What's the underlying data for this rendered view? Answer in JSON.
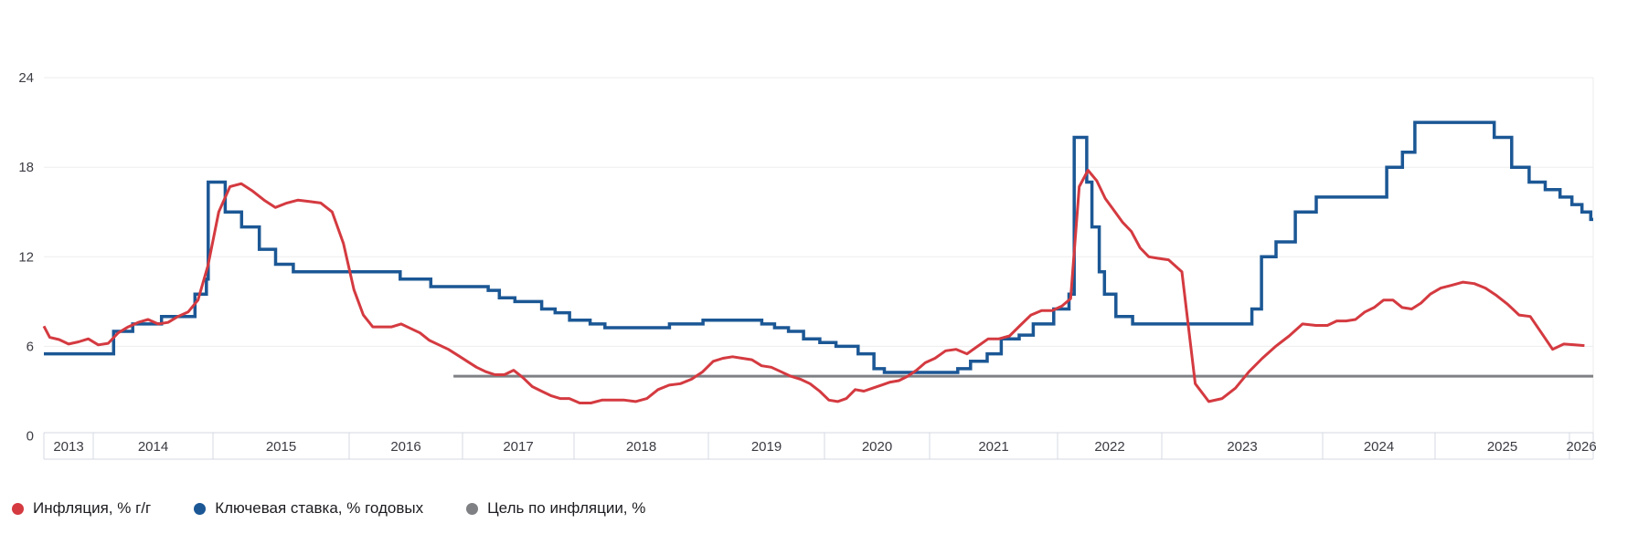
{
  "legend": {
    "items": [
      {
        "label": "Инфляция, % г/г",
        "color": "#d43a40"
      },
      {
        "label": "Ключевая ставка, % годовых",
        "color": "#1b5795"
      },
      {
        "label": "Цель по инфляции, %",
        "color": "#7e8084"
      }
    ]
  },
  "chart_data": {
    "type": "line",
    "title": "",
    "grid": true,
    "legend_position": "bottom-left",
    "y_axis": {
      "ticks": [
        0,
        6,
        12,
        18,
        24
      ],
      "range": [
        0,
        24
      ]
    },
    "x_axis": {
      "years": [
        2013,
        2014,
        2015,
        2016,
        2017,
        2018,
        2019,
        2020,
        2021,
        2022,
        2023,
        2024,
        2025,
        2026
      ],
      "range": [
        2013.58,
        2026.19
      ]
    },
    "series": [
      {
        "name": "Инфляция, % г/г",
        "type": "line",
        "color": "#d43a40",
        "points": [
          [
            2013.58,
            7.35
          ],
          [
            2013.63,
            6.6
          ],
          [
            2013.71,
            6.45
          ],
          [
            2013.79,
            6.15
          ],
          [
            2013.875,
            6.3
          ],
          [
            2013.958,
            6.5
          ],
          [
            2014.042,
            6.1
          ],
          [
            2014.125,
            6.2
          ],
          [
            2014.208,
            6.9
          ],
          [
            2014.292,
            7.3
          ],
          [
            2014.375,
            7.6
          ],
          [
            2014.458,
            7.8
          ],
          [
            2014.542,
            7.5
          ],
          [
            2014.625,
            7.6
          ],
          [
            2014.708,
            8.0
          ],
          [
            2014.792,
            8.3
          ],
          [
            2014.875,
            9.1
          ],
          [
            2014.958,
            11.4
          ],
          [
            2015.042,
            15.0
          ],
          [
            2015.125,
            16.7
          ],
          [
            2015.208,
            16.9
          ],
          [
            2015.292,
            16.4
          ],
          [
            2015.375,
            15.8
          ],
          [
            2015.458,
            15.3
          ],
          [
            2015.542,
            15.6
          ],
          [
            2015.625,
            15.8
          ],
          [
            2015.708,
            15.7
          ],
          [
            2015.792,
            15.6
          ],
          [
            2015.875,
            15.0
          ],
          [
            2015.958,
            12.9
          ],
          [
            2016.042,
            9.8
          ],
          [
            2016.125,
            8.1
          ],
          [
            2016.208,
            7.3
          ],
          [
            2016.292,
            7.3
          ],
          [
            2016.375,
            7.3
          ],
          [
            2016.458,
            7.5
          ],
          [
            2016.542,
            7.2
          ],
          [
            2016.625,
            6.9
          ],
          [
            2016.708,
            6.4
          ],
          [
            2016.792,
            6.1
          ],
          [
            2016.875,
            5.8
          ],
          [
            2016.958,
            5.4
          ],
          [
            2017.042,
            5.0
          ],
          [
            2017.125,
            4.6
          ],
          [
            2017.208,
            4.3
          ],
          [
            2017.292,
            4.1
          ],
          [
            2017.375,
            4.1
          ],
          [
            2017.458,
            4.4
          ],
          [
            2017.542,
            3.9
          ],
          [
            2017.625,
            3.3
          ],
          [
            2017.708,
            3.0
          ],
          [
            2017.792,
            2.7
          ],
          [
            2017.875,
            2.5
          ],
          [
            2017.958,
            2.5
          ],
          [
            2018.042,
            2.2
          ],
          [
            2018.125,
            2.2
          ],
          [
            2018.208,
            2.4
          ],
          [
            2018.292,
            2.4
          ],
          [
            2018.375,
            2.4
          ],
          [
            2018.458,
            2.3
          ],
          [
            2018.542,
            2.5
          ],
          [
            2018.625,
            3.1
          ],
          [
            2018.708,
            3.4
          ],
          [
            2018.792,
            3.5
          ],
          [
            2018.875,
            3.8
          ],
          [
            2018.958,
            4.3
          ],
          [
            2019.042,
            5.0
          ],
          [
            2019.125,
            5.2
          ],
          [
            2019.208,
            5.3
          ],
          [
            2019.292,
            5.2
          ],
          [
            2019.375,
            5.1
          ],
          [
            2019.458,
            4.7
          ],
          [
            2019.542,
            4.6
          ],
          [
            2019.625,
            4.3
          ],
          [
            2019.708,
            4.0
          ],
          [
            2019.792,
            3.8
          ],
          [
            2019.875,
            3.5
          ],
          [
            2019.958,
            3.0
          ],
          [
            2020.042,
            2.4
          ],
          [
            2020.125,
            2.3
          ],
          [
            2020.208,
            2.5
          ],
          [
            2020.292,
            3.1
          ],
          [
            2020.375,
            3.0
          ],
          [
            2020.458,
            3.2
          ],
          [
            2020.542,
            3.4
          ],
          [
            2020.625,
            3.6
          ],
          [
            2020.708,
            3.7
          ],
          [
            2020.792,
            4.0
          ],
          [
            2020.875,
            4.4
          ],
          [
            2020.958,
            4.9
          ],
          [
            2021.042,
            5.2
          ],
          [
            2021.125,
            5.7
          ],
          [
            2021.208,
            5.8
          ],
          [
            2021.292,
            5.5
          ],
          [
            2021.375,
            6.0
          ],
          [
            2021.458,
            6.5
          ],
          [
            2021.542,
            6.5
          ],
          [
            2021.625,
            6.7
          ],
          [
            2021.708,
            7.4
          ],
          [
            2021.792,
            8.1
          ],
          [
            2021.875,
            8.4
          ],
          [
            2021.958,
            8.4
          ],
          [
            2022.042,
            8.7
          ],
          [
            2022.125,
            9.2
          ],
          [
            2022.208,
            16.7
          ],
          [
            2022.292,
            17.8
          ],
          [
            2022.375,
            17.1
          ],
          [
            2022.458,
            15.9
          ],
          [
            2022.542,
            15.1
          ],
          [
            2022.625,
            14.3
          ],
          [
            2022.708,
            13.7
          ],
          [
            2022.792,
            12.6
          ],
          [
            2022.875,
            12.0
          ],
          [
            2022.958,
            11.9
          ],
          [
            2023.042,
            11.8
          ],
          [
            2023.125,
            11.0
          ],
          [
            2023.208,
            3.5
          ],
          [
            2023.292,
            2.3
          ],
          [
            2023.375,
            2.5
          ],
          [
            2023.458,
            3.2
          ],
          [
            2023.542,
            4.3
          ],
          [
            2023.625,
            5.2
          ],
          [
            2023.708,
            6.0
          ],
          [
            2023.792,
            6.7
          ],
          [
            2023.875,
            7.5
          ],
          [
            2023.958,
            7.4
          ],
          [
            2024.042,
            7.4
          ],
          [
            2024.125,
            7.7
          ],
          [
            2024.208,
            7.7
          ],
          [
            2024.292,
            7.8
          ],
          [
            2024.375,
            8.3
          ],
          [
            2024.458,
            8.6
          ],
          [
            2024.542,
            9.1
          ],
          [
            2024.625,
            9.1
          ],
          [
            2024.708,
            8.6
          ],
          [
            2024.792,
            8.5
          ],
          [
            2024.875,
            8.9
          ],
          [
            2024.958,
            9.5
          ],
          [
            2025.042,
            9.9
          ],
          [
            2025.125,
            10.1
          ],
          [
            2025.208,
            10.3
          ],
          [
            2025.292,
            10.2
          ],
          [
            2025.375,
            9.9
          ],
          [
            2025.458,
            9.4
          ],
          [
            2025.542,
            8.8
          ],
          [
            2025.625,
            8.1
          ],
          [
            2025.708,
            8.0
          ],
          [
            2025.792,
            6.9
          ],
          [
            2025.875,
            5.8
          ],
          [
            2025.958,
            6.15
          ],
          [
            2026.042,
            6.1
          ],
          [
            2026.12,
            6.05
          ]
        ]
      },
      {
        "name": "Ключевая ставка, % годовых",
        "type": "step",
        "color": "#1b5795",
        "points": [
          [
            2013.58,
            5.5
          ],
          [
            2014.17,
            7.0
          ],
          [
            2014.33,
            7.5
          ],
          [
            2014.57,
            8.0
          ],
          [
            2014.85,
            9.5
          ],
          [
            2014.945,
            10.5
          ],
          [
            2014.96,
            17.0
          ],
          [
            2015.09,
            15.0
          ],
          [
            2015.21,
            14.0
          ],
          [
            2015.34,
            12.5
          ],
          [
            2015.46,
            11.5
          ],
          [
            2015.59,
            11.0
          ],
          [
            2016.45,
            10.5
          ],
          [
            2016.72,
            10.0
          ],
          [
            2017.23,
            9.75
          ],
          [
            2017.33,
            9.25
          ],
          [
            2017.47,
            9.0
          ],
          [
            2017.71,
            8.5
          ],
          [
            2017.83,
            8.25
          ],
          [
            2017.96,
            7.75
          ],
          [
            2018.12,
            7.5
          ],
          [
            2018.23,
            7.25
          ],
          [
            2018.71,
            7.5
          ],
          [
            2018.96,
            7.75
          ],
          [
            2019.46,
            7.5
          ],
          [
            2019.57,
            7.25
          ],
          [
            2019.69,
            7.0
          ],
          [
            2019.82,
            6.5
          ],
          [
            2019.96,
            6.25
          ],
          [
            2020.11,
            6.0
          ],
          [
            2020.32,
            5.5
          ],
          [
            2020.47,
            4.5
          ],
          [
            2020.57,
            4.25
          ],
          [
            2021.22,
            4.5
          ],
          [
            2021.32,
            5.0
          ],
          [
            2021.45,
            5.5
          ],
          [
            2021.56,
            6.5
          ],
          [
            2021.7,
            6.75
          ],
          [
            2021.81,
            7.5
          ],
          [
            2021.97,
            8.5
          ],
          [
            2022.11,
            9.5
          ],
          [
            2022.16,
            20.0
          ],
          [
            2022.28,
            17.0
          ],
          [
            2022.33,
            14.0
          ],
          [
            2022.4,
            11.0
          ],
          [
            2022.45,
            9.5
          ],
          [
            2022.56,
            8.0
          ],
          [
            2022.72,
            7.5
          ],
          [
            2023.56,
            8.5
          ],
          [
            2023.62,
            12.0
          ],
          [
            2023.71,
            13.0
          ],
          [
            2023.83,
            15.0
          ],
          [
            2023.96,
            16.0
          ],
          [
            2024.57,
            18.0
          ],
          [
            2024.71,
            19.0
          ],
          [
            2024.82,
            21.0
          ],
          [
            2025.44,
            20.0
          ],
          [
            2025.57,
            18.0
          ],
          [
            2025.7,
            17.0
          ],
          [
            2025.82,
            16.5
          ],
          [
            2025.93,
            16.0
          ],
          [
            2026.02,
            15.5
          ],
          [
            2026.1,
            15.0
          ],
          [
            2026.17,
            14.5
          ]
        ]
      },
      {
        "name": "Цель по инфляции, %",
        "type": "line",
        "color": "#7e8084",
        "points": [
          [
            2016.92,
            4.0
          ],
          [
            2026.19,
            4.0
          ]
        ]
      }
    ]
  }
}
